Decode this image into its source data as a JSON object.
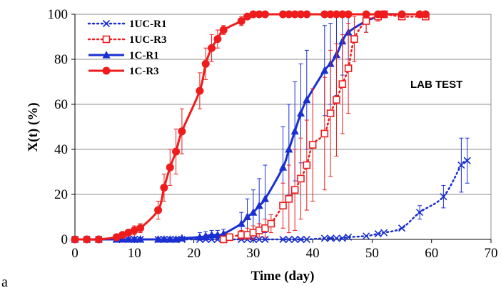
{
  "chart_data": {
    "type": "line",
    "title": "",
    "xlabel": "Time (day)",
    "ylabel": "X(t) (%)",
    "xlim": [
      0,
      70
    ],
    "ylim": [
      0,
      100
    ],
    "x_ticks": [
      0,
      10,
      20,
      30,
      40,
      50,
      60,
      70
    ],
    "y_ticks": [
      0,
      20,
      40,
      60,
      80,
      100
    ],
    "grid": "horizontal",
    "legend_position": "top-left",
    "annotation": "LAB TEST",
    "panel_label": "a",
    "colors": {
      "blue": "#1a2fd1",
      "red": "#ee1c1c"
    },
    "series": [
      {
        "name": "1UC-R1",
        "color": "#1a2fd1",
        "line_style": "dotted",
        "marker": "x",
        "x": [
          0,
          2,
          4,
          7,
          8,
          9,
          10,
          11,
          14,
          15,
          16,
          17,
          18,
          21,
          22,
          23,
          24,
          25,
          28,
          29,
          30,
          31,
          32,
          35,
          36,
          37,
          38,
          39,
          42,
          43,
          44,
          45,
          46,
          49,
          51,
          52,
          55,
          58,
          62,
          65,
          66
        ],
        "y": [
          0,
          0,
          0,
          0,
          0,
          0,
          0,
          0,
          0,
          0,
          0,
          0,
          0,
          0,
          0,
          0,
          0,
          0,
          0,
          0,
          0,
          0,
          0,
          0,
          0,
          0,
          0,
          0,
          0.5,
          0.5,
          0.5,
          0.5,
          1,
          1.5,
          2.5,
          3,
          5,
          12,
          19,
          33,
          35
        ],
        "err": [
          0,
          0,
          0,
          0,
          0,
          0,
          0,
          0,
          0,
          0,
          0,
          0,
          0,
          0,
          0,
          0,
          0,
          0,
          0,
          0,
          0,
          0,
          0,
          0,
          0,
          0,
          0,
          0,
          0,
          0,
          0,
          0,
          0,
          0,
          0,
          0,
          0,
          3,
          5,
          12,
          10
        ]
      },
      {
        "name": "1UC-R3",
        "color": "#ee1c1c",
        "line_style": "dotted",
        "marker": "open-square",
        "x": [
          25,
          26,
          28,
          29,
          30,
          31,
          32,
          33,
          35,
          36,
          37,
          38,
          39,
          40,
          42,
          43,
          44,
          45,
          46,
          47,
          49,
          51,
          52,
          55,
          59
        ],
        "y": [
          0,
          1,
          2,
          2,
          3,
          4,
          5,
          7,
          15,
          18,
          22,
          27,
          33,
          42,
          47,
          56,
          62,
          69,
          76,
          89,
          97,
          99,
          100,
          99,
          99
        ],
        "err": [
          0,
          0,
          2,
          3,
          3,
          3,
          4,
          4,
          10,
          15,
          18,
          18,
          20,
          25,
          25,
          28,
          25,
          22,
          20,
          10,
          5,
          2,
          1,
          1,
          1
        ]
      },
      {
        "name": "1C-R1",
        "color": "#1a2fd1",
        "line_style": "solid",
        "marker": "filled-triangle",
        "x": [
          0,
          2,
          4,
          7,
          8,
          9,
          10,
          11,
          14,
          15,
          16,
          17,
          18,
          21,
          22,
          23,
          24,
          25,
          28,
          29,
          30,
          31,
          32,
          35,
          36,
          37,
          38,
          39,
          42,
          43,
          44,
          45,
          46,
          49,
          51,
          52,
          55,
          58,
          59
        ],
        "y": [
          0,
          0,
          0,
          0,
          0,
          0,
          0,
          0,
          0,
          0,
          0,
          0,
          0.5,
          1,
          1.5,
          2,
          2,
          2.5,
          7,
          10,
          12,
          15,
          18,
          32,
          40,
          48,
          56,
          62,
          75,
          78,
          82,
          88,
          92,
          97,
          99,
          100,
          100,
          100,
          100
        ],
        "err": [
          0,
          0,
          0,
          0,
          0,
          0,
          0,
          0,
          0,
          0,
          0,
          0,
          0,
          2,
          2,
          2,
          2,
          2,
          5,
          8,
          10,
          12,
          15,
          18,
          20,
          22,
          22,
          22,
          20,
          18,
          18,
          15,
          12,
          5,
          2,
          1,
          1,
          1,
          1
        ]
      },
      {
        "name": "1C-R3",
        "color": "#ee1c1c",
        "line_style": "solid",
        "marker": "filled-circle",
        "x": [
          0,
          2,
          4,
          7,
          8,
          9,
          10,
          11,
          14,
          15,
          16,
          17,
          18,
          21,
          22,
          23,
          24,
          25,
          28,
          29,
          30,
          31,
          32,
          35,
          36,
          37,
          38,
          39,
          42,
          43,
          44,
          45,
          46,
          49,
          51,
          52,
          55,
          58,
          59
        ],
        "y": [
          0,
          0,
          0,
          1,
          2,
          3,
          4,
          5,
          13,
          23,
          32,
          39,
          48,
          66,
          78,
          85,
          89,
          93,
          97,
          99,
          100,
          100,
          100,
          100,
          100,
          100,
          100,
          100,
          100,
          100,
          100,
          100,
          100,
          100,
          100,
          100,
          100,
          100,
          100
        ],
        "err": [
          0,
          0,
          0,
          0,
          1,
          1,
          2,
          2,
          4,
          6,
          8,
          10,
          10,
          8,
          7,
          6,
          4,
          2,
          2,
          1,
          0,
          0,
          0,
          0,
          0,
          0,
          0,
          0,
          0,
          0,
          0,
          0,
          0,
          0,
          0,
          0,
          0,
          0,
          0
        ]
      }
    ]
  }
}
